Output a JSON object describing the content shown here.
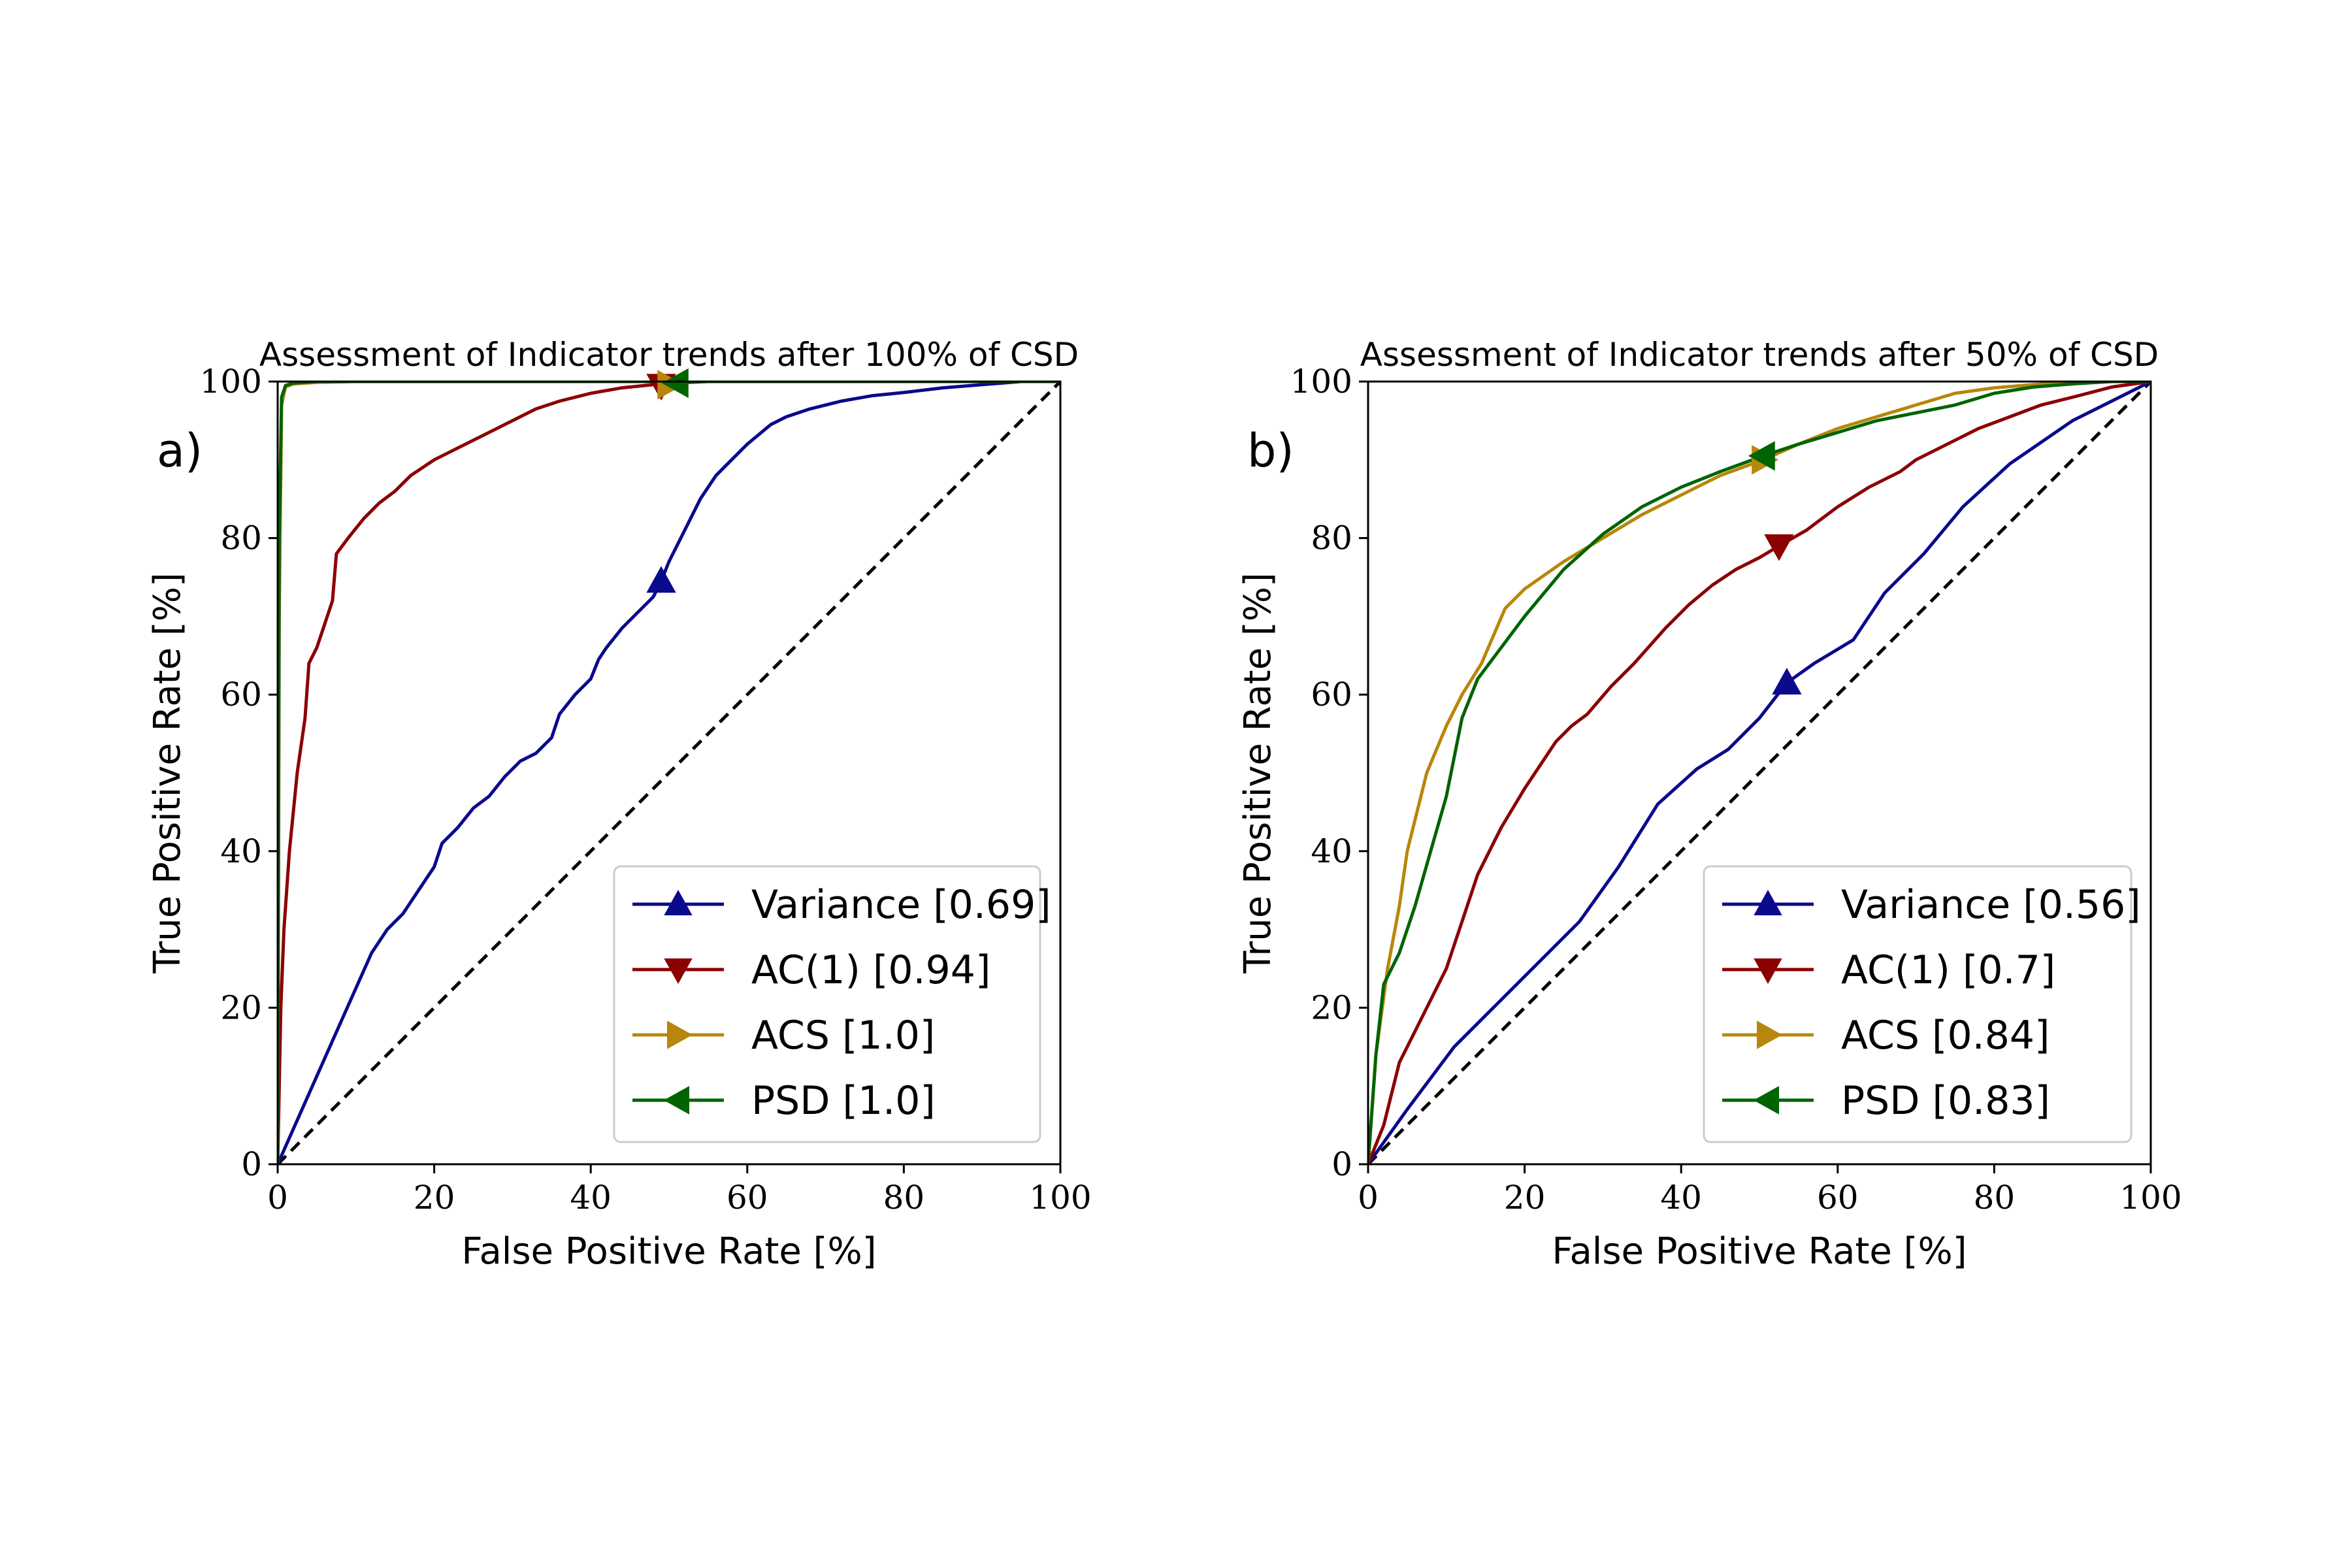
{
  "chart_data": [
    {
      "type": "line",
      "panel_label": "a)",
      "title": "Assessment of Indicator trends after 100% of CSD",
      "xlabel": "False Positive Rate [%]",
      "ylabel": "True Positive Rate [%]",
      "xlim": [
        0,
        100
      ],
      "ylim": [
        0,
        100
      ],
      "xticks": [
        "0",
        "20",
        "40",
        "60",
        "80",
        "100"
      ],
      "yticks": [
        "0",
        "20",
        "40",
        "60",
        "80",
        "100"
      ],
      "grid": false,
      "legend_position": "lower-right",
      "diagonal": {
        "style": "dashed",
        "color": "#000000",
        "x": [
          0,
          100
        ],
        "y": [
          0,
          100
        ]
      },
      "series": [
        {
          "name": "Variance [0.69]",
          "color": "#0a0a8c",
          "marker": "triangle-up",
          "marker_at": [
            49,
            74.5
          ],
          "x": [
            0,
            4,
            8,
            12,
            14,
            16,
            18,
            20,
            21,
            23,
            25,
            27,
            29,
            31,
            33,
            35,
            36,
            38,
            40,
            41,
            42,
            44,
            46,
            48,
            49,
            50,
            52,
            54,
            56,
            58,
            60,
            63,
            65,
            68,
            72,
            76,
            80,
            85,
            90,
            95,
            100
          ],
          "y": [
            0,
            9,
            18,
            27,
            30,
            32,
            35,
            38,
            41,
            43,
            45.5,
            47,
            49.5,
            51.5,
            52.5,
            54.5,
            57.5,
            60,
            62,
            64.5,
            66,
            68.5,
            70.5,
            72.5,
            74.5,
            77,
            81,
            85,
            88,
            90,
            92,
            94.5,
            95.5,
            96.5,
            97.5,
            98.2,
            98.6,
            99.2,
            99.6,
            100,
            100
          ]
        },
        {
          "name": "AC(1) [0.94]",
          "color": "#8b0000",
          "marker": "triangle-down",
          "marker_at": [
            49,
            99.5
          ],
          "x": [
            0,
            0.4,
            0.8,
            1.5,
            2.5,
            3.5,
            4,
            5,
            6,
            7,
            7.5,
            9,
            11,
            13,
            15,
            17,
            20,
            23,
            26,
            30,
            33,
            36,
            40,
            44,
            48,
            50,
            55,
            60,
            70,
            80,
            90,
            100
          ],
          "y": [
            0,
            20,
            30,
            40,
            50,
            57,
            64,
            66,
            69,
            72,
            78,
            80,
            82.5,
            84.5,
            86,
            88,
            90,
            91.5,
            93,
            95,
            96.5,
            97.5,
            98.5,
            99.2,
            99.6,
            99.8,
            100,
            100,
            100,
            100,
            100,
            100
          ]
        },
        {
          "name": "ACS [1.0]",
          "color": "#b8860b",
          "marker": "triangle-right",
          "marker_at": [
            50,
            99.6
          ],
          "x": [
            0,
            0.2,
            0.5,
            1,
            2,
            5,
            10,
            20,
            40,
            60,
            80,
            100
          ],
          "y": [
            0,
            70,
            97,
            99.3,
            99.7,
            99.9,
            100,
            100,
            100,
            100,
            100,
            100
          ]
        },
        {
          "name": "PSD [1.0]",
          "color": "#006400",
          "marker": "triangle-left",
          "marker_at": [
            51,
            99.8
          ],
          "x": [
            0,
            0.2,
            0.5,
            1,
            2,
            5,
            10,
            20,
            40,
            60,
            80,
            100
          ],
          "y": [
            0,
            80,
            98,
            99.5,
            99.8,
            100,
            100,
            100,
            100,
            100,
            100,
            100
          ]
        }
      ]
    },
    {
      "type": "line",
      "panel_label": "b)",
      "title": "Assessment of Indicator trends after 50% of CSD",
      "xlabel": "False Positive Rate [%]",
      "ylabel": "True Positive Rate [%]",
      "xlim": [
        0,
        100
      ],
      "ylim": [
        0,
        100
      ],
      "xticks": [
        "0",
        "20",
        "40",
        "60",
        "80",
        "100"
      ],
      "yticks": [
        "0",
        "20",
        "40",
        "60",
        "80",
        "100"
      ],
      "grid": false,
      "legend_position": "lower-right",
      "diagonal": {
        "style": "dashed",
        "color": "#000000",
        "x": [
          0,
          100
        ],
        "y": [
          0,
          100
        ]
      },
      "series": [
        {
          "name": "Variance [0.56]",
          "color": "#0a0a8c",
          "marker": "triangle-up",
          "marker_at": [
            53.5,
            61.5
          ],
          "x": [
            0,
            5,
            11,
            16,
            21,
            27,
            32,
            37,
            42,
            46,
            50,
            53.5,
            57,
            62,
            66,
            71,
            76,
            82,
            90,
            96,
            100
          ],
          "y": [
            0,
            7,
            15,
            20,
            25,
            31,
            38,
            46,
            50.5,
            53,
            57,
            61.5,
            64,
            67,
            73,
            78,
            84,
            89.5,
            95,
            98,
            100
          ]
        },
        {
          "name": "AC(1) [0.7]",
          "color": "#8b0000",
          "marker": "triangle-down",
          "marker_at": [
            52.5,
            79
          ],
          "x": [
            0,
            2,
            4,
            7,
            10,
            12,
            14,
            17,
            20,
            24,
            26,
            28,
            31,
            34,
            38,
            41,
            44,
            47,
            50,
            52.5,
            56,
            60,
            64,
            68,
            70,
            74,
            78,
            82,
            86,
            90,
            95,
            100
          ],
          "y": [
            0,
            5,
            13,
            19,
            25,
            31,
            37,
            43,
            48,
            54,
            56,
            57.5,
            61,
            64,
            68.5,
            71.5,
            74,
            76,
            77.5,
            79,
            81,
            84,
            86.5,
            88.5,
            90,
            92,
            94,
            95.5,
            97,
            98,
            99.3,
            100
          ]
        },
        {
          "name": "ACS [0.84]",
          "color": "#b8860b",
          "marker": "triangle-right",
          "marker_at": [
            50.5,
            90
          ],
          "x": [
            0,
            1,
            2.5,
            4,
            5,
            7.5,
            10,
            12,
            14.5,
            17.5,
            20,
            25,
            30,
            35,
            40,
            45,
            50.5,
            55,
            60,
            65,
            70,
            75,
            80,
            85,
            90,
            95,
            100
          ],
          "y": [
            0,
            14,
            25,
            33,
            40,
            50,
            56,
            60,
            64,
            71,
            73.5,
            77,
            80,
            83,
            85.5,
            88,
            90,
            92,
            94,
            95.5,
            97,
            98.5,
            99.2,
            99.6,
            99.9,
            100,
            100
          ]
        },
        {
          "name": "PSD [0.83]",
          "color": "#006400",
          "marker": "triangle-left",
          "marker_at": [
            50.5,
            90.5
          ],
          "x": [
            0,
            1,
            2,
            4,
            6,
            8,
            10,
            12,
            14,
            17,
            20,
            25,
            30,
            35,
            40,
            45,
            50.5,
            55,
            60,
            65,
            70,
            75,
            80,
            85,
            90,
            95,
            100
          ],
          "y": [
            0,
            14,
            23,
            27,
            33,
            40,
            47,
            57,
            62,
            66,
            70,
            76,
            80.5,
            84,
            86.5,
            88.5,
            90.5,
            92,
            93.5,
            95,
            96,
            97,
            98.5,
            99.3,
            99.7,
            100,
            100
          ]
        }
      ]
    }
  ]
}
